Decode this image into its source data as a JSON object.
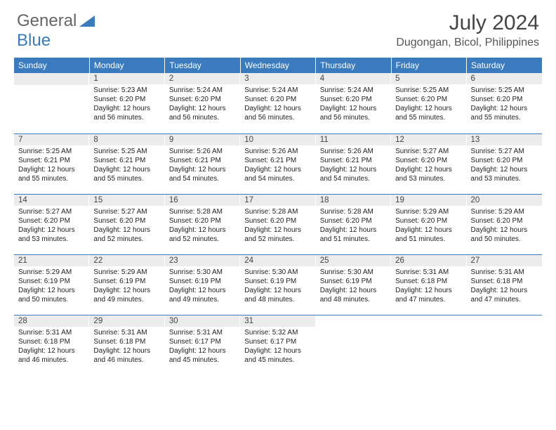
{
  "logo": {
    "text1": "General",
    "text2": "Blue"
  },
  "title": "July 2024",
  "location": "Dugongan, Bicol, Philippines",
  "colors": {
    "header_bg": "#3a7bbf",
    "header_fg": "#ffffff",
    "daynum_bg": "#ececec",
    "rule": "#3a7bbf",
    "body_text": "#222222",
    "title_text": "#444444"
  },
  "weekdays": [
    "Sunday",
    "Monday",
    "Tuesday",
    "Wednesday",
    "Thursday",
    "Friday",
    "Saturday"
  ],
  "weeks": [
    [
      null,
      {
        "n": "1",
        "sr": "5:23 AM",
        "ss": "6:20 PM",
        "dl": "12 hours and 56 minutes."
      },
      {
        "n": "2",
        "sr": "5:24 AM",
        "ss": "6:20 PM",
        "dl": "12 hours and 56 minutes."
      },
      {
        "n": "3",
        "sr": "5:24 AM",
        "ss": "6:20 PM",
        "dl": "12 hours and 56 minutes."
      },
      {
        "n": "4",
        "sr": "5:24 AM",
        "ss": "6:20 PM",
        "dl": "12 hours and 56 minutes."
      },
      {
        "n": "5",
        "sr": "5:25 AM",
        "ss": "6:20 PM",
        "dl": "12 hours and 55 minutes."
      },
      {
        "n": "6",
        "sr": "5:25 AM",
        "ss": "6:20 PM",
        "dl": "12 hours and 55 minutes."
      }
    ],
    [
      {
        "n": "7",
        "sr": "5:25 AM",
        "ss": "6:21 PM",
        "dl": "12 hours and 55 minutes."
      },
      {
        "n": "8",
        "sr": "5:25 AM",
        "ss": "6:21 PM",
        "dl": "12 hours and 55 minutes."
      },
      {
        "n": "9",
        "sr": "5:26 AM",
        "ss": "6:21 PM",
        "dl": "12 hours and 54 minutes."
      },
      {
        "n": "10",
        "sr": "5:26 AM",
        "ss": "6:21 PM",
        "dl": "12 hours and 54 minutes."
      },
      {
        "n": "11",
        "sr": "5:26 AM",
        "ss": "6:21 PM",
        "dl": "12 hours and 54 minutes."
      },
      {
        "n": "12",
        "sr": "5:27 AM",
        "ss": "6:20 PM",
        "dl": "12 hours and 53 minutes."
      },
      {
        "n": "13",
        "sr": "5:27 AM",
        "ss": "6:20 PM",
        "dl": "12 hours and 53 minutes."
      }
    ],
    [
      {
        "n": "14",
        "sr": "5:27 AM",
        "ss": "6:20 PM",
        "dl": "12 hours and 53 minutes."
      },
      {
        "n": "15",
        "sr": "5:27 AM",
        "ss": "6:20 PM",
        "dl": "12 hours and 52 minutes."
      },
      {
        "n": "16",
        "sr": "5:28 AM",
        "ss": "6:20 PM",
        "dl": "12 hours and 52 minutes."
      },
      {
        "n": "17",
        "sr": "5:28 AM",
        "ss": "6:20 PM",
        "dl": "12 hours and 52 minutes."
      },
      {
        "n": "18",
        "sr": "5:28 AM",
        "ss": "6:20 PM",
        "dl": "12 hours and 51 minutes."
      },
      {
        "n": "19",
        "sr": "5:29 AM",
        "ss": "6:20 PM",
        "dl": "12 hours and 51 minutes."
      },
      {
        "n": "20",
        "sr": "5:29 AM",
        "ss": "6:20 PM",
        "dl": "12 hours and 50 minutes."
      }
    ],
    [
      {
        "n": "21",
        "sr": "5:29 AM",
        "ss": "6:19 PM",
        "dl": "12 hours and 50 minutes."
      },
      {
        "n": "22",
        "sr": "5:29 AM",
        "ss": "6:19 PM",
        "dl": "12 hours and 49 minutes."
      },
      {
        "n": "23",
        "sr": "5:30 AM",
        "ss": "6:19 PM",
        "dl": "12 hours and 49 minutes."
      },
      {
        "n": "24",
        "sr": "5:30 AM",
        "ss": "6:19 PM",
        "dl": "12 hours and 48 minutes."
      },
      {
        "n": "25",
        "sr": "5:30 AM",
        "ss": "6:19 PM",
        "dl": "12 hours and 48 minutes."
      },
      {
        "n": "26",
        "sr": "5:31 AM",
        "ss": "6:18 PM",
        "dl": "12 hours and 47 minutes."
      },
      {
        "n": "27",
        "sr": "5:31 AM",
        "ss": "6:18 PM",
        "dl": "12 hours and 47 minutes."
      }
    ],
    [
      {
        "n": "28",
        "sr": "5:31 AM",
        "ss": "6:18 PM",
        "dl": "12 hours and 46 minutes."
      },
      {
        "n": "29",
        "sr": "5:31 AM",
        "ss": "6:18 PM",
        "dl": "12 hours and 46 minutes."
      },
      {
        "n": "30",
        "sr": "5:31 AM",
        "ss": "6:17 PM",
        "dl": "12 hours and 45 minutes."
      },
      {
        "n": "31",
        "sr": "5:32 AM",
        "ss": "6:17 PM",
        "dl": "12 hours and 45 minutes."
      },
      null,
      null,
      null
    ]
  ],
  "labels": {
    "sunrise": "Sunrise:",
    "sunset": "Sunset:",
    "daylight": "Daylight:"
  }
}
